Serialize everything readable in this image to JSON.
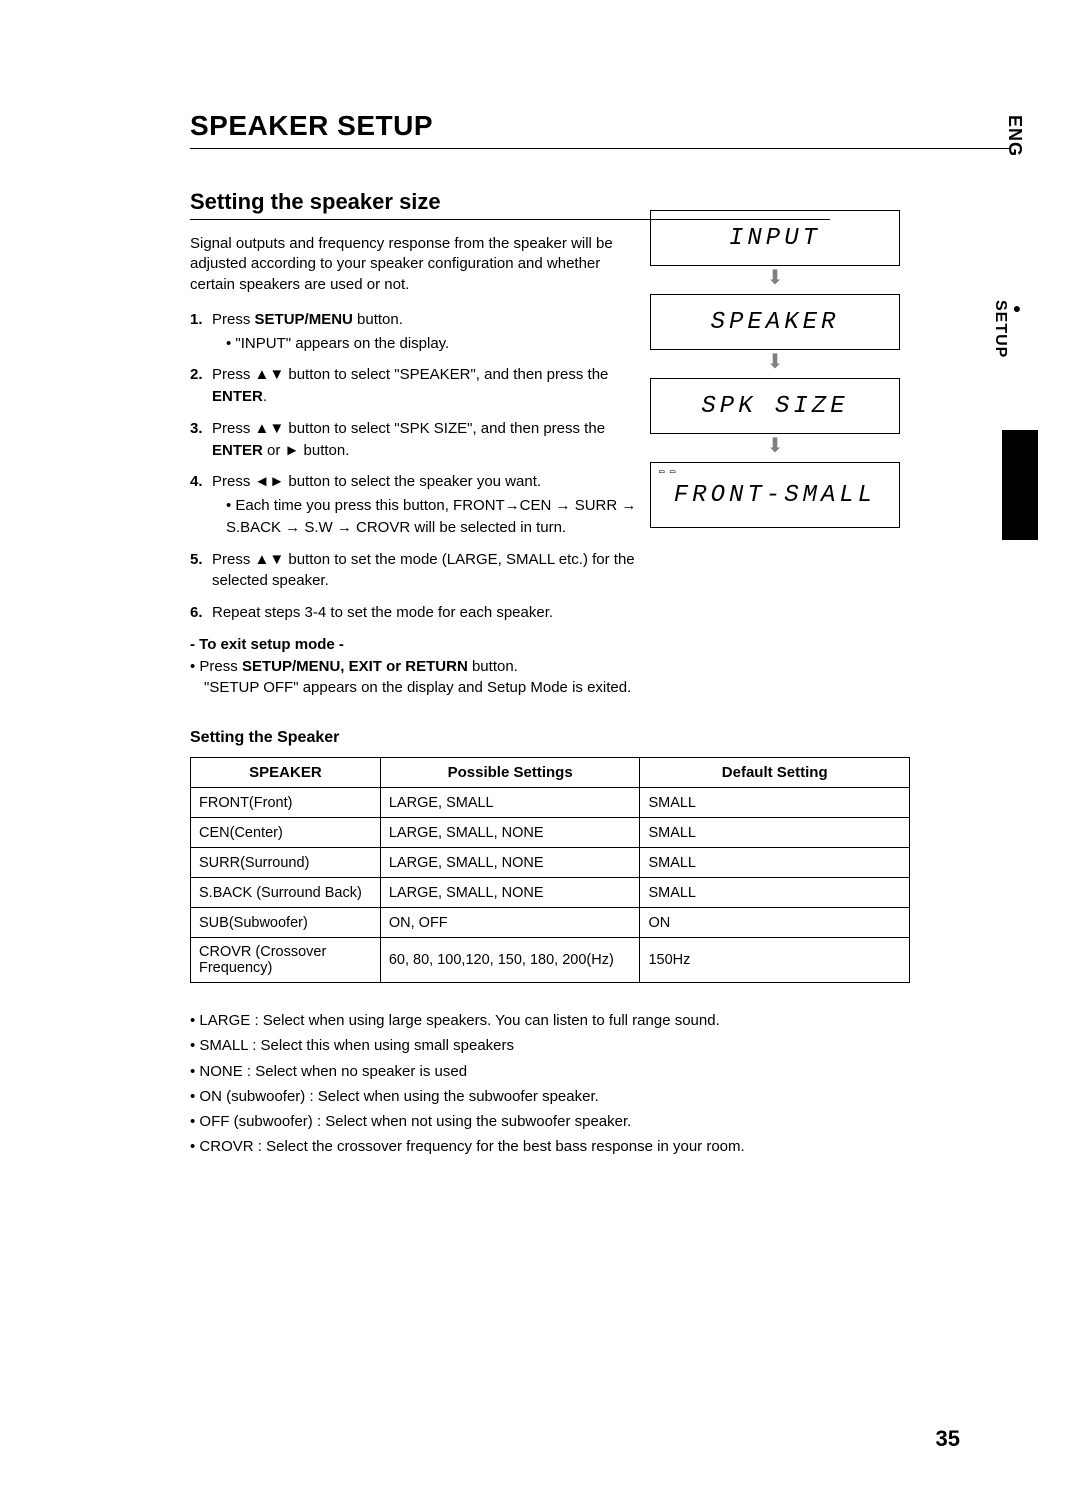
{
  "side": {
    "lang": "ENG",
    "section": "SETUP"
  },
  "title": "SPEAKER SETUP",
  "section_title": "Setting the speaker size",
  "intro": "Signal outputs and frequency response from the speaker will be adjusted according to your speaker configuration and whether certain speakers are used or not.",
  "steps": [
    {
      "num": "1.",
      "text_pre": "Press ",
      "bold": "SETUP/MENU",
      "text_post": " button.",
      "sub": "• \"INPUT\" appears on the display."
    },
    {
      "num": "2.",
      "text_pre": "Press ▲▼ button to select \"SPEAKER\", and then press the ",
      "bold": "ENTER",
      "text_post": "."
    },
    {
      "num": "3.",
      "text_pre": "Press ▲▼ button to select \"SPK SIZE\", and then press the ",
      "bold": "ENTER",
      "text_post": " or ► button."
    },
    {
      "num": "4.",
      "text_pre": "Press ◄► button to select the speaker you want.",
      "bold": "",
      "text_post": "",
      "sub": "• Each time you press this button, FRONT→CEN → SURR → S.BACK → S.W → CROVR will be selected in turn."
    },
    {
      "num": "5.",
      "text_pre": "Press ▲▼ button to set the mode (LARGE, SMALL etc.) for the selected speaker.",
      "bold": "",
      "text_post": ""
    },
    {
      "num": "6.",
      "text_pre": "Repeat steps 3-4 to set the mode for each speaker.",
      "bold": "",
      "text_post": ""
    }
  ],
  "exit": {
    "heading": "- To exit setup mode -",
    "line1_pre": "• Press ",
    "line1_bold": "SETUP/MENU, EXIT or RETURN",
    "line1_post": " button.",
    "line2": "\"SETUP OFF\" appears on the display and Setup Mode is exited."
  },
  "lcd": {
    "panels": [
      "INPUT",
      "SPEAKER",
      "SPK SIZE",
      "FRONT-SMALL"
    ],
    "arrow": "⬇",
    "icons": "▭ ▭"
  },
  "table": {
    "title": "Setting the Speaker",
    "columns": [
      "SPEAKER",
      "Possible Settings",
      "Default Setting"
    ],
    "col_widths": [
      "190px",
      "260px",
      "270px"
    ],
    "rows": [
      [
        "FRONT(Front)",
        "LARGE, SMALL",
        "SMALL"
      ],
      [
        "CEN(Center)",
        "LARGE, SMALL, NONE",
        "SMALL"
      ],
      [
        "SURR(Surround)",
        "LARGE, SMALL, NONE",
        "SMALL"
      ],
      [
        "S.BACK (Surround Back)",
        "LARGE, SMALL, NONE",
        "SMALL"
      ],
      [
        "SUB(Subwoofer)",
        "ON, OFF",
        "ON"
      ],
      [
        "CROVR (Crossover Frequency)",
        "60, 80, 100,120, 150, 180, 200(Hz)",
        "150Hz"
      ]
    ]
  },
  "notes": [
    "• LARGE : Select when using large speakers. You can listen to full   range sound.",
    "• SMALL : Select this when using small speakers",
    "• NONE : Select when no speaker is used",
    "• ON (subwoofer) : Select when using the subwoofer speaker.",
    "• OFF (subwoofer) : Select when not using the subwoofer speaker.",
    "• CROVR : Select the crossover frequency for the best bass response in your room."
  ],
  "page_number": "35"
}
